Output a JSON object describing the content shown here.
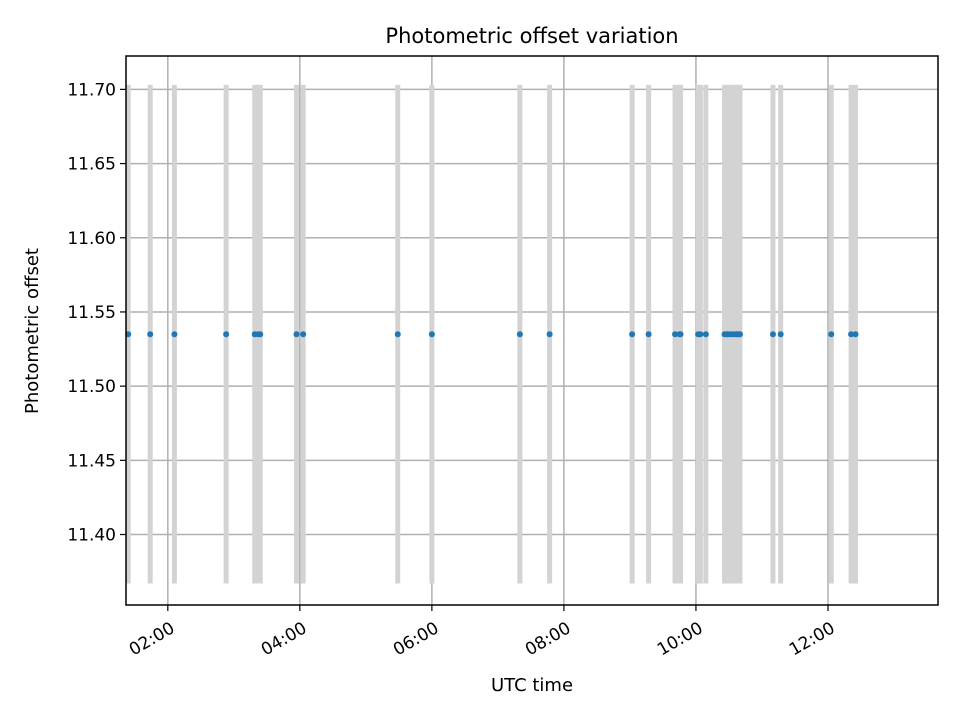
{
  "chart_data": {
    "type": "scatter",
    "title": "Photometric offset variation",
    "xlabel": "UTC time",
    "ylabel": "Photometric offset",
    "xlim": [
      "01:22",
      "13:40"
    ],
    "ylim": [
      11.3525,
      11.7225
    ],
    "xticks": [
      "02:00",
      "04:00",
      "06:00",
      "08:00",
      "10:00",
      "12:00"
    ],
    "yticks": [
      "11.40",
      "11.45",
      "11.50",
      "11.55",
      "11.60",
      "11.65",
      "11.70"
    ],
    "grid": true,
    "errorbar_color": "#d3d3d3",
    "point_color": "#1f77b4",
    "series": [
      {
        "x": [
          "01:24",
          "01:44",
          "02:06",
          "02:53",
          "03:19",
          "03:22",
          "03:24",
          "03:57",
          "04:03",
          "05:29",
          "06:00",
          "07:20",
          "07:47",
          "09:02",
          "09:17",
          "09:41",
          "09:45",
          "09:46",
          "10:02",
          "10:04",
          "10:09",
          "10:26",
          "10:28",
          "10:29",
          "10:31",
          "10:33",
          "10:35",
          "10:37",
          "10:38",
          "10:39",
          "10:40",
          "11:10",
          "11:17",
          "12:03",
          "12:21",
          "12:25"
        ],
        "y": [
          11.535,
          11.535,
          11.535,
          11.535,
          11.535,
          11.535,
          11.535,
          11.535,
          11.535,
          11.535,
          11.535,
          11.535,
          11.535,
          11.535,
          11.535,
          11.535,
          11.535,
          11.535,
          11.535,
          11.535,
          11.535,
          11.535,
          11.535,
          11.535,
          11.535,
          11.535,
          11.535,
          11.535,
          11.535,
          11.535,
          11.535,
          11.535,
          11.535,
          11.535,
          11.535,
          11.535
        ],
        "yerr": 0.168
      }
    ]
  }
}
